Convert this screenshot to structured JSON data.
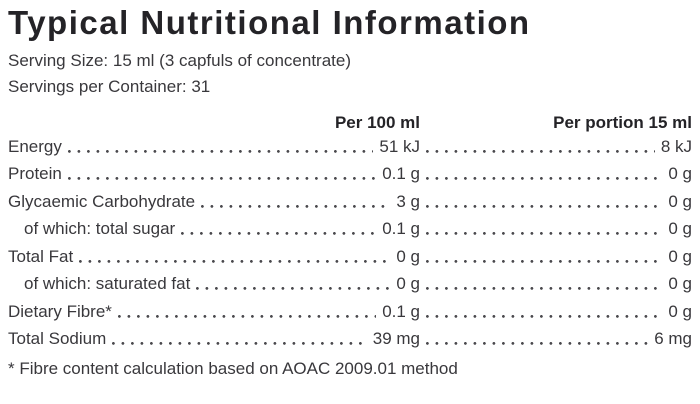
{
  "page": {
    "title": "Typical Nutritional Information",
    "serving_size": "Serving Size: 15 ml (3 capfuls of concentrate)",
    "servings_per_container": "Servings per Container: 31",
    "footnote": "* Fibre content calculation based on AOAC 2009.01 method"
  },
  "table": {
    "columns": [
      "Per 100 ml",
      "Per portion 15 ml"
    ],
    "rows": [
      {
        "label": "Energy",
        "per_100ml": "51 kJ",
        "per_portion": "8 kJ",
        "indent": false
      },
      {
        "label": "Protein",
        "per_100ml": "0.1 g",
        "per_portion": "0 g",
        "indent": false
      },
      {
        "label": "Glycaemic Carbohydrate",
        "per_100ml": "3 g",
        "per_portion": "0 g",
        "indent": false
      },
      {
        "label": "of which: total sugar",
        "per_100ml": "0.1 g",
        "per_portion": "0 g",
        "indent": true
      },
      {
        "label": "Total Fat",
        "per_100ml": "0 g",
        "per_portion": "0 g",
        "indent": false
      },
      {
        "label": "of which: saturated fat",
        "per_100ml": "0 g",
        "per_portion": "0 g",
        "indent": true
      },
      {
        "label": "Dietary Fibre*",
        "per_100ml": "0.1 g",
        "per_portion": "0 g",
        "indent": false
      },
      {
        "label": "Total Sodium",
        "per_100ml": "39 mg",
        "per_portion": "6 mg",
        "indent": false
      }
    ]
  },
  "colors": {
    "text": "#39383c",
    "title": "#242327",
    "dot_leader": "#4a494d",
    "background": "#ffffff"
  }
}
